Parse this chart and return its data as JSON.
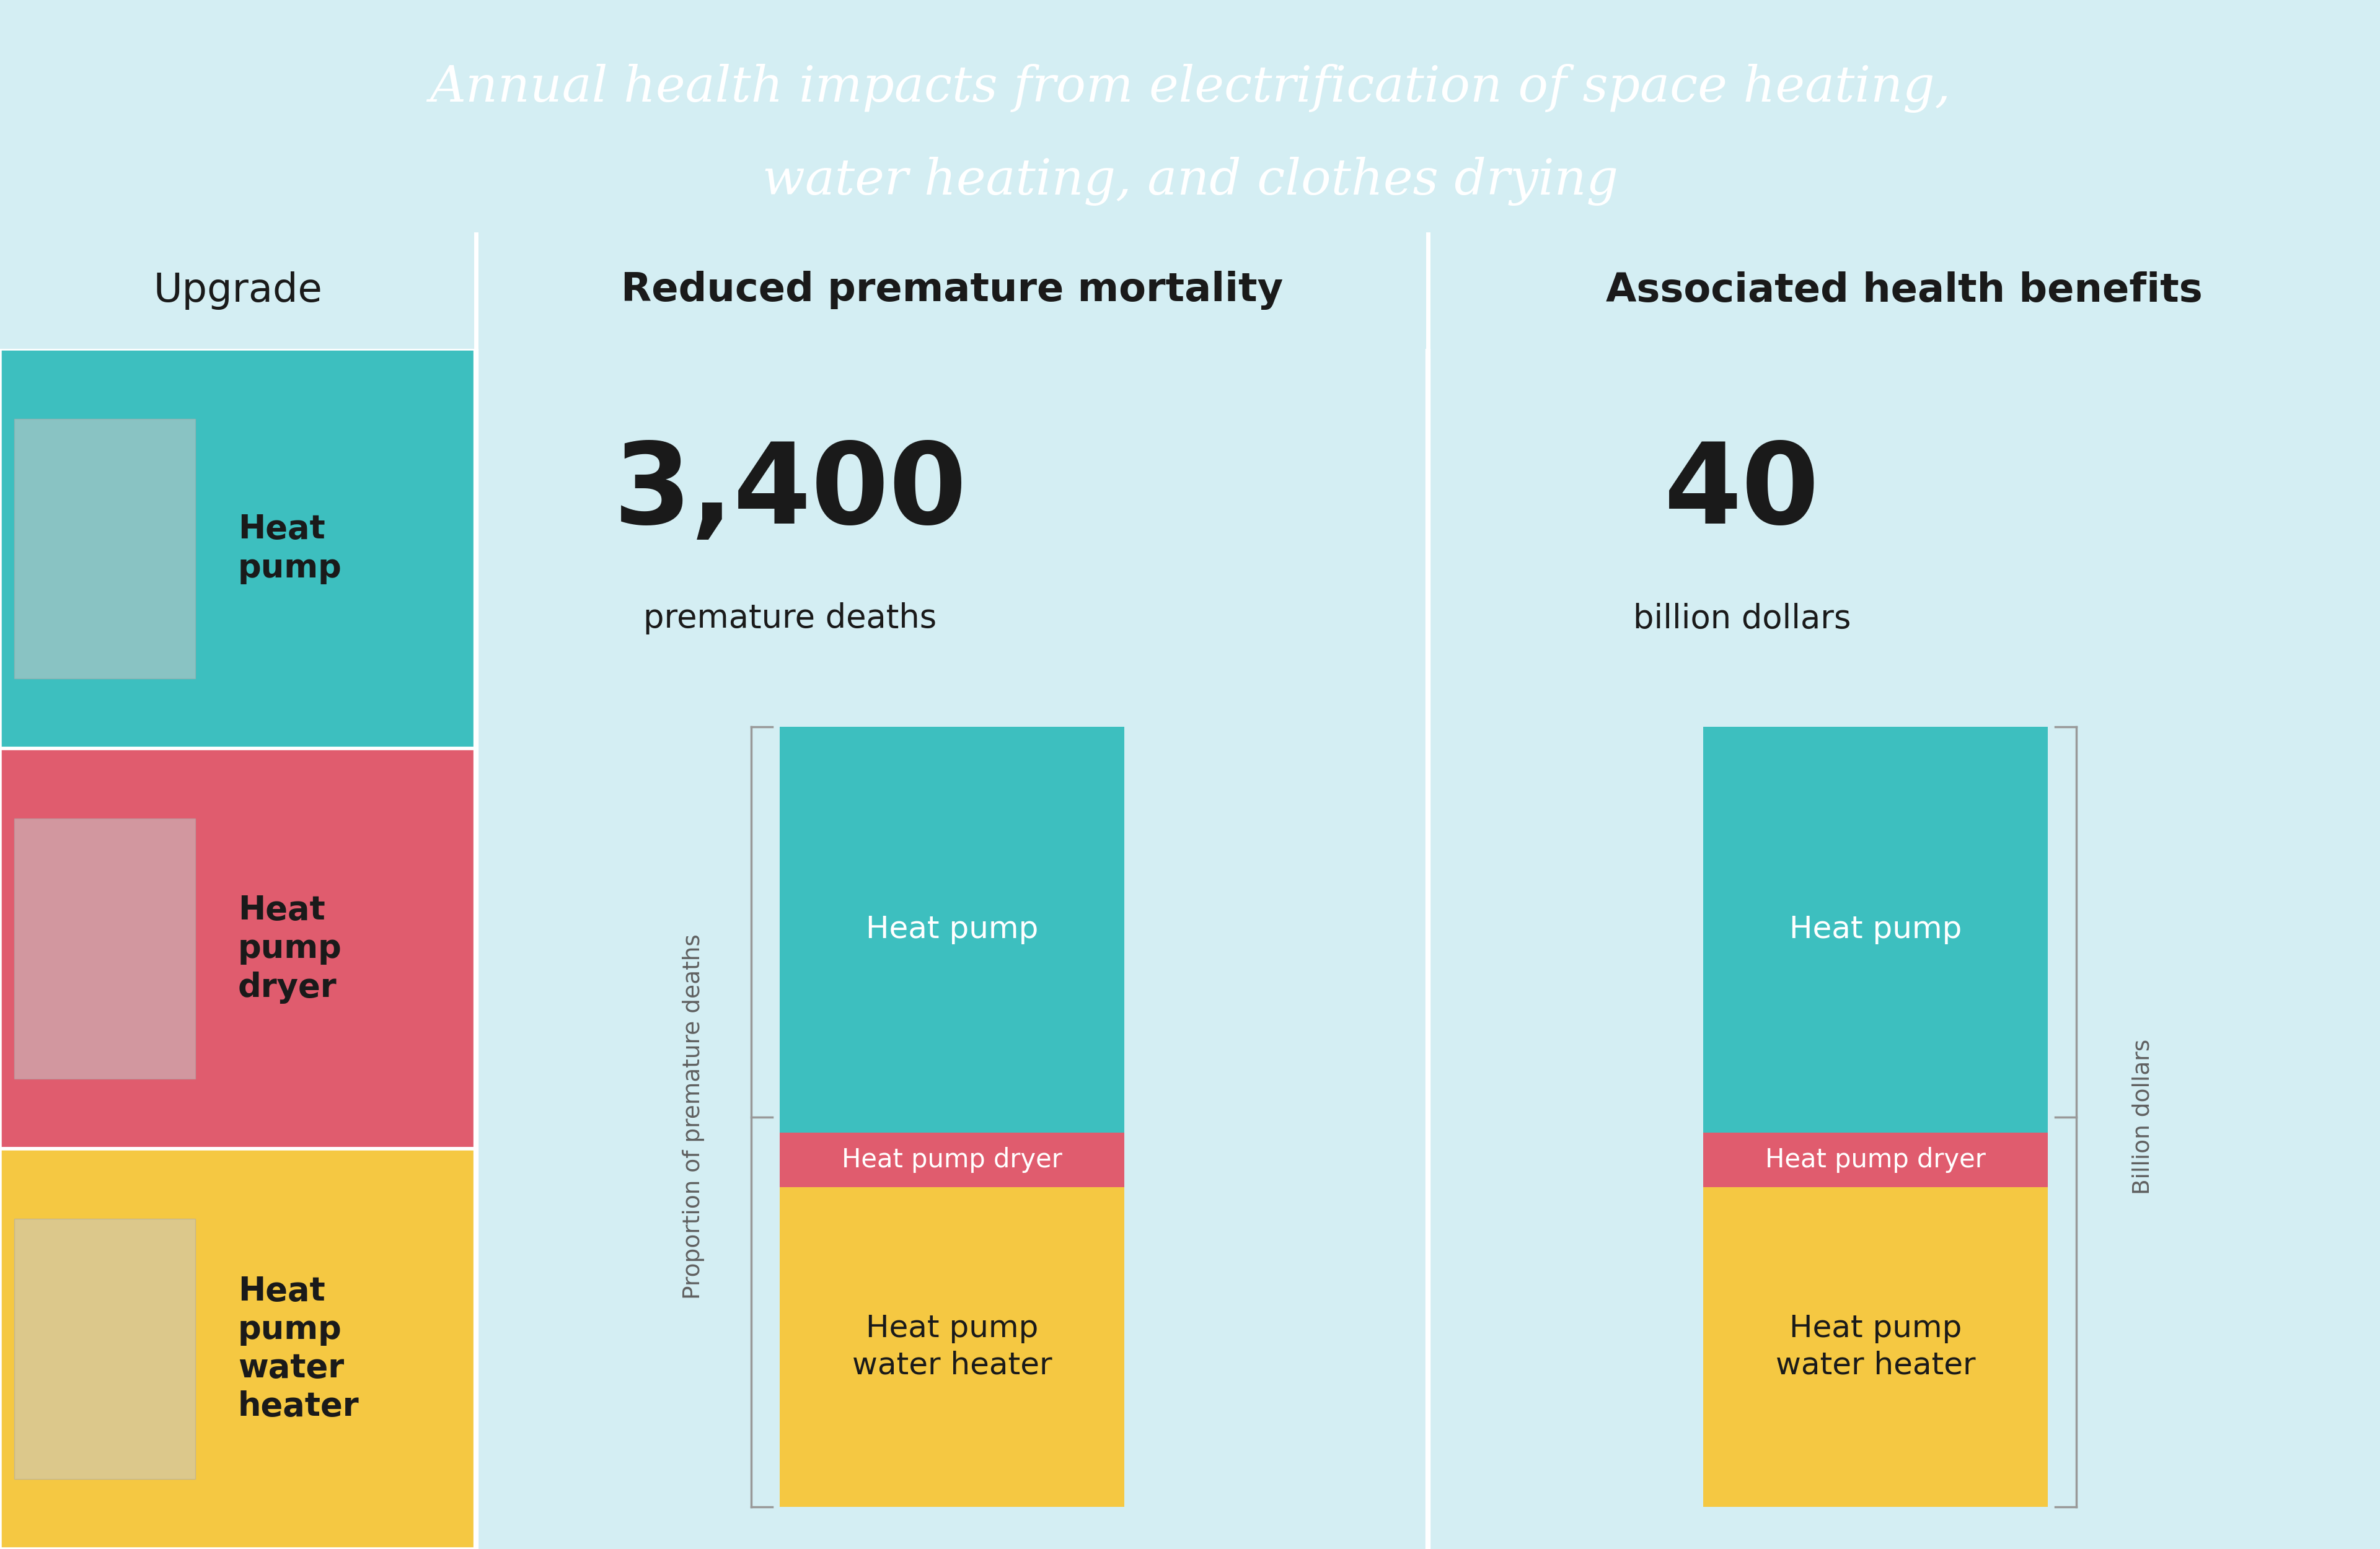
{
  "title_line1": "Annual health impacts from electrification of space heating,",
  "title_line2": "water heating, and clothes drying",
  "title_bg": "#323232",
  "title_color": "#ffffff",
  "header_bg": "#cce8ed",
  "content_bg": "#d4eef3",
  "col1_header": "Upgrade",
  "col2_header": "Reduced premature mortality",
  "col3_header": "Associated health benefits",
  "row_colors": [
    "#3dbfbf",
    "#e05c6e",
    "#f5c842"
  ],
  "row_labels": [
    "Heat\npump",
    "Heat\npump\ndryer",
    "Heat\npump\nwater\nheater"
  ],
  "bar1_total_label": "3,400",
  "bar1_sublabel": "premature deaths",
  "bar2_total_label": "40",
  "bar2_sublabel": "billion dollars",
  "bar_color_hp": "#3dbfbf",
  "bar_color_hpd": "#e05c6e",
  "bar_color_hpwh": "#f5c842",
  "bar1_axis_label": "Proportion of premature deaths",
  "bar2_axis_label": "Billion dollars",
  "bar_props_hp": 0.52,
  "bar_props_hpd": 0.07,
  "bar_props_hpwh": 0.41,
  "text_dark": "#1a1a1a",
  "divider_color": "#ffffff",
  "bracket_color": "#999999"
}
